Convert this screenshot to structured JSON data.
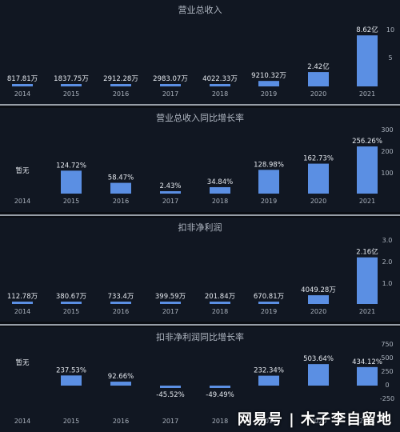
{
  "chart_data": [
    {
      "type": "bar",
      "title": "营业总收入",
      "categories": [
        "2014",
        "2015",
        "2016",
        "2017",
        "2018",
        "2019",
        "2020",
        "2021"
      ],
      "values": [
        0.0818,
        0.1838,
        0.2912,
        0.2983,
        0.4022,
        0.921,
        2.42,
        8.62
      ],
      "labels": [
        "817.81万",
        "1837.75万",
        "2912.28万",
        "2983.07万",
        "4022.33万",
        "9210.32万",
        "2.42亿",
        "8.62亿"
      ],
      "ylim": [
        0,
        10
      ],
      "yticks": [
        "10",
        "5"
      ],
      "grid": false
    },
    {
      "type": "bar",
      "title": "营业总收入同比增长率",
      "categories": [
        "2014",
        "2015",
        "2016",
        "2017",
        "2018",
        "2019",
        "2020",
        "2021"
      ],
      "values": [
        null,
        124.72,
        58.47,
        2.43,
        34.84,
        128.98,
        162.73,
        256.26
      ],
      "labels": [
        "暂无",
        "124.72%",
        "58.47%",
        "2.43%",
        "34.84%",
        "128.98%",
        "162.73%",
        "256.26%"
      ],
      "ylim": [
        0,
        300
      ],
      "yticks": [
        "300",
        "200",
        "100"
      ],
      "grid": false
    },
    {
      "type": "bar",
      "title": "扣非净利润",
      "categories": [
        "2014",
        "2015",
        "2016",
        "2017",
        "2018",
        "2019",
        "2020",
        "2021"
      ],
      "values": [
        0.1128,
        0.3807,
        0.7334,
        0.3996,
        0.2018,
        0.6708,
        4.0493,
        21.6
      ],
      "labels": [
        "112.78万",
        "380.67万",
        "733.4万",
        "399.59万",
        "201.84万",
        "670.81万",
        "4049.28万",
        "2.16亿"
      ],
      "ylim": [
        0,
        30
      ],
      "yticks": [
        "3.0",
        "2.0",
        "1.0"
      ],
      "grid": false
    },
    {
      "type": "bar",
      "title": "扣非净利润同比增长率",
      "categories": [
        "2014",
        "2015",
        "2016",
        "2017",
        "2018",
        "2019",
        "2020",
        "2021"
      ],
      "values": [
        null,
        237.53,
        92.66,
        -45.52,
        -49.49,
        232.34,
        503.64,
        434.12
      ],
      "labels": [
        "暂无",
        "237.53%",
        "92.66%",
        "-45.52%",
        "-49.49%",
        "232.34%",
        "503.64%",
        "434.12%"
      ],
      "ylim": [
        -250,
        750
      ],
      "yticks": [
        "750",
        "500",
        "250",
        "0",
        "-250"
      ],
      "grid": false
    }
  ],
  "watermark": "网易号 | 木子李自留地",
  "colors": {
    "bar": "#5b8fe3",
    "background": "#111722",
    "text": "#d7dce3"
  }
}
